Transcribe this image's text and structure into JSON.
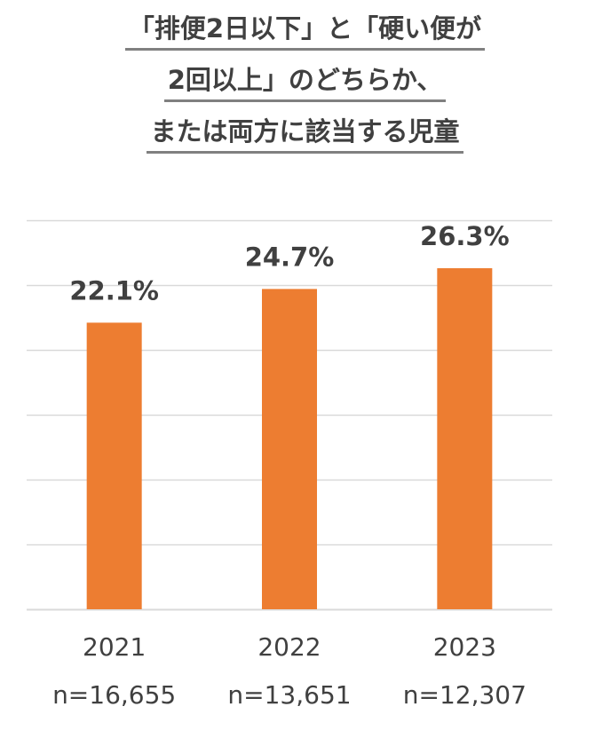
{
  "title": {
    "lines": [
      "「排便2日以下」と「硬い便が",
      "2回以上」のどちらか、",
      "または両方に該当する児童"
    ]
  },
  "colors": {
    "bar": "#ED7D31",
    "grid": "#D9D9D9",
    "text": "#404040"
  },
  "chart_data": {
    "type": "bar",
    "categories": [
      "2021",
      "2022",
      "2023"
    ],
    "sample_sizes": [
      "n=16,655",
      "n=13,651",
      "n=12,307"
    ],
    "values": [
      22.1,
      24.7,
      26.3
    ],
    "data_labels": [
      "22.1%",
      "24.7%",
      "26.3%"
    ],
    "title": "「排便2日以下」と「硬い便が2回以上」のどちらか、または両方に該当する児童",
    "xlabel": "",
    "ylabel": "",
    "ylim": [
      0,
      30
    ],
    "grid": true,
    "legend": "none"
  }
}
